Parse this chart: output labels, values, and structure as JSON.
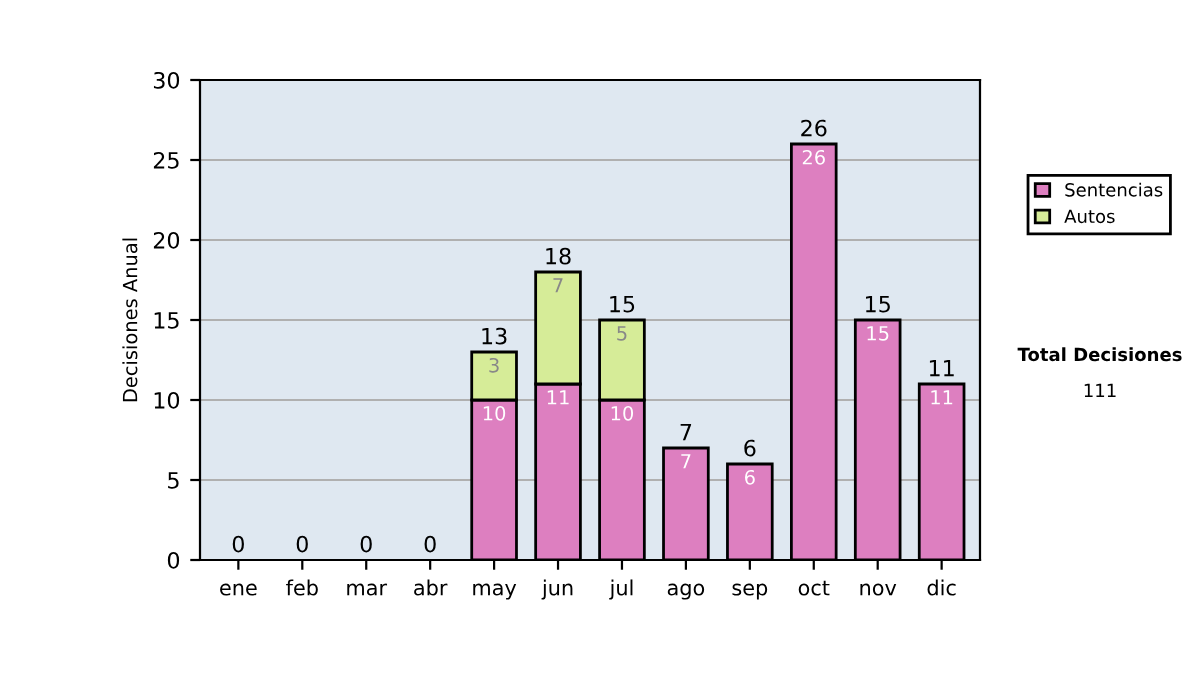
{
  "chart_data": {
    "type": "bar",
    "stacked": true,
    "ylabel": "Decisiones Anual",
    "categories": [
      "ene",
      "feb",
      "mar",
      "abr",
      "may",
      "jun",
      "jul",
      "ago",
      "sep",
      "oct",
      "nov",
      "dic"
    ],
    "series": [
      {
        "name": "Sentencias",
        "color": "#dd7fc0",
        "values": [
          0,
          0,
          0,
          0,
          10,
          11,
          10,
          7,
          6,
          26,
          15,
          11
        ],
        "value_labels": [
          null,
          null,
          null,
          null,
          "10",
          "11",
          "10",
          "7",
          "6",
          "26",
          "15",
          "11"
        ]
      },
      {
        "name": "Autos",
        "color": "#d6ec98",
        "values": [
          0,
          0,
          0,
          0,
          3,
          7,
          5,
          0,
          0,
          0,
          0,
          0
        ],
        "value_labels": [
          null,
          null,
          null,
          null,
          "3",
          "7",
          "5",
          null,
          null,
          null,
          null,
          null
        ]
      }
    ],
    "totals": [
      "0",
      "0",
      "0",
      "0",
      "13",
      "18",
      "15",
      "7",
      "6",
      "26",
      "15",
      "11"
    ],
    "ylim": [
      0,
      30
    ],
    "yticks": [
      0,
      5,
      10,
      15,
      20,
      25,
      30
    ],
    "grid": "y",
    "legend": "right",
    "annotations": [
      "Total Decisiones",
      "111"
    ]
  }
}
